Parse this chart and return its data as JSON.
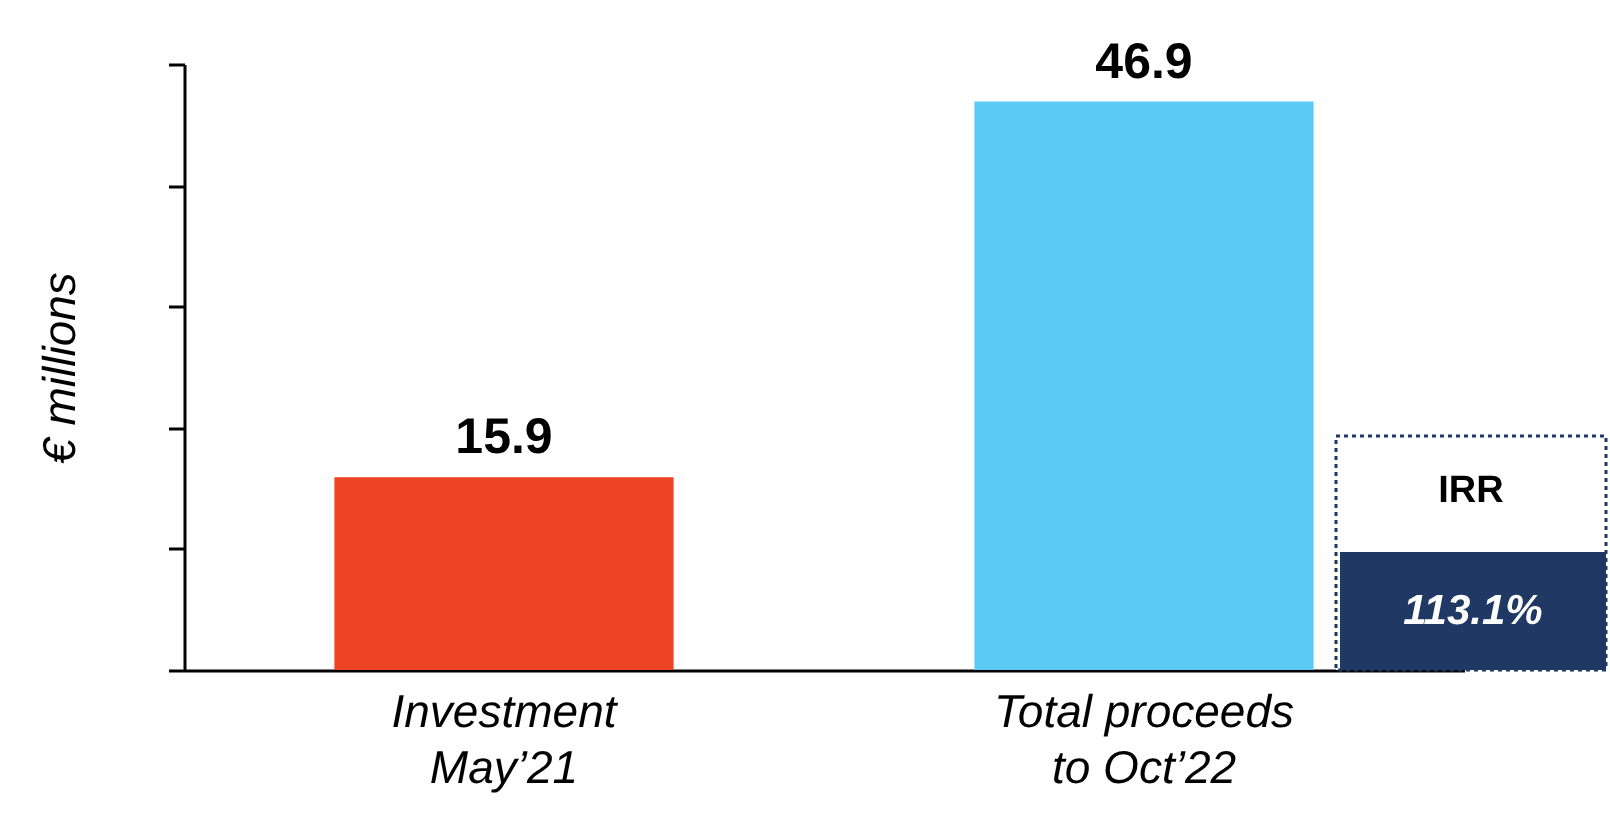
{
  "chart_data": {
    "type": "bar",
    "ylabel": "€ millions",
    "categories": [
      "Investment\nMay’21",
      "Total proceeds\nto Oct’22"
    ],
    "values": [
      15.9,
      46.9
    ],
    "colors": [
      "#ee4426",
      "#5bcbf5"
    ],
    "ylim": [
      0,
      50
    ],
    "yticks": [
      {
        "value": 0,
        "label": null
      },
      {
        "value": 10,
        "label": null
      },
      {
        "value": 20,
        "label": null
      },
      {
        "value": 30,
        "label": null
      },
      {
        "value": 40,
        "label": null
      },
      {
        "value": 50,
        "label": null
      }
    ],
    "data_labels": true,
    "grid": false,
    "annotations": [
      "IRR",
      "113.1%"
    ]
  }
}
